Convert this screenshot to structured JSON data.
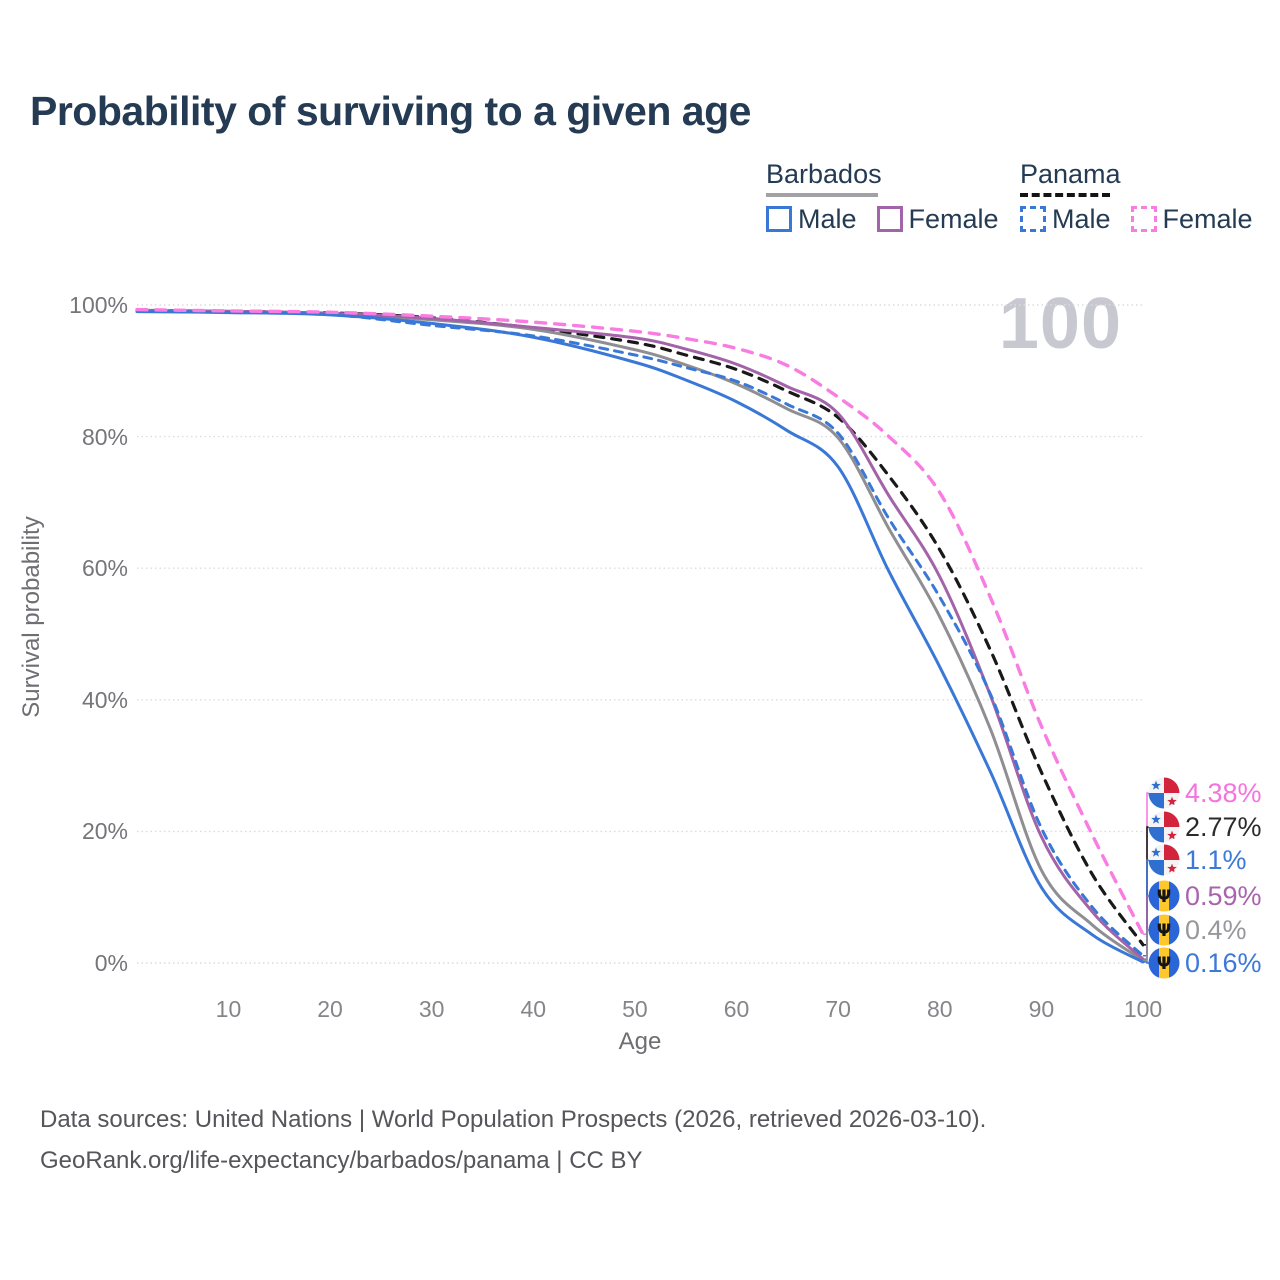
{
  "title": "Probability of surviving to a given age",
  "age_counter": "100",
  "legend": {
    "groups": [
      {
        "name": "Barbados",
        "line_style": "solid",
        "underline_color": "#a2a2a6",
        "items": [
          {
            "label": "Male",
            "color": "#3a78d7",
            "dashed": false
          },
          {
            "label": "Female",
            "color": "#a363a8",
            "dashed": false
          }
        ]
      },
      {
        "name": "Panama",
        "line_style": "dashed",
        "underline_color": "#141414",
        "items": [
          {
            "label": "Male",
            "color": "#3a78d7",
            "dashed": true
          },
          {
            "label": "Female",
            "color": "#f97ce1",
            "dashed": true
          }
        ]
      }
    ]
  },
  "chart_data": {
    "type": "line",
    "title": "Probability of surviving to a given age",
    "xlabel": "Age",
    "ylabel": "Survival probability",
    "xlim": [
      1,
      100
    ],
    "ylim": [
      0,
      100
    ],
    "grid": "horizontal-dotted",
    "legend_position": "top-right",
    "x_ticks": [
      10,
      20,
      30,
      40,
      50,
      60,
      70,
      80,
      90,
      100
    ],
    "y_ticks": [
      {
        "value": 0,
        "label": "0%"
      },
      {
        "value": 20,
        "label": "20%"
      },
      {
        "value": 40,
        "label": "40%"
      },
      {
        "value": 60,
        "label": "60%"
      },
      {
        "value": 80,
        "label": "80%"
      },
      {
        "value": 100,
        "label": "100%"
      }
    ],
    "ages": [
      1,
      10,
      20,
      30,
      40,
      50,
      55,
      60,
      65,
      70,
      75,
      80,
      85,
      90,
      95,
      100
    ],
    "series": [
      {
        "name": "Panama Both sexes",
        "country": "Panama",
        "sex": "Both",
        "color": "#191919",
        "dash": "9 8",
        "width": 3.2,
        "row": 1,
        "values": [
          99.2,
          99.0,
          98.8,
          98.05,
          96.5,
          94.3,
          92.4,
          90.2,
          86.9,
          82.9,
          74.0,
          62.8,
          47.5,
          29.0,
          13.5,
          2.77
        ],
        "end": {
          "label": "2.77%",
          "label_color": "#2b2b2b",
          "flag": "panama",
          "value": 2.77
        }
      },
      {
        "name": "Barbados Both sexes",
        "country": "Barbados",
        "sex": "Both",
        "color": "#8e8e93",
        "dash": null,
        "width": 3,
        "row": 4,
        "values": [
          99.1,
          98.95,
          98.65,
          97.75,
          96.3,
          93.2,
          90.9,
          88.0,
          84.2,
          79.8,
          66.0,
          52.6,
          35.5,
          14.1,
          5.8,
          0.4
        ],
        "end": {
          "label": "0.4%",
          "label_color": "#98989c",
          "flag": "barbados",
          "value": 0.4
        }
      },
      {
        "name": "Barbados Female",
        "country": "Barbados",
        "sex": "Female",
        "color": "#a363a8",
        "dash": null,
        "width": 3,
        "row": 3,
        "values": [
          99.2,
          99.05,
          98.75,
          97.95,
          96.6,
          95.0,
          93.3,
          91.0,
          87.6,
          83.5,
          71.0,
          58.7,
          40.6,
          19.2,
          7.8,
          0.59
        ],
        "end": {
          "label": "0.59%",
          "label_color": "#a864ad",
          "flag": "barbados",
          "value": 0.59
        }
      },
      {
        "name": "Barbados Male",
        "country": "Barbados",
        "sex": "Male",
        "color": "#3a78d7",
        "dash": null,
        "width": 3,
        "row": 5,
        "values": [
          99.0,
          98.85,
          98.5,
          97.2,
          95.1,
          91.3,
          88.6,
          85.3,
          80.9,
          75.4,
          59.5,
          45.0,
          29.0,
          11.5,
          4.3,
          0.16
        ],
        "end": {
          "label": "0.16%",
          "label_color": "#3c79d8",
          "flag": "barbados",
          "value": 0.16
        }
      },
      {
        "name": "Panama Male",
        "country": "Panama",
        "sex": "Male",
        "color": "#3a78d7",
        "dash": "8 7",
        "width": 3,
        "row": 2,
        "values": [
          99.1,
          98.9,
          98.55,
          96.9,
          95.3,
          92.4,
          90.5,
          88.4,
          84.9,
          80.5,
          67.5,
          55.6,
          40.8,
          20.5,
          8.5,
          1.1
        ],
        "end": {
          "label": "1.1%",
          "label_color": "#3c79d8",
          "flag": "panama",
          "value": 1.1
        }
      },
      {
        "name": "Panama Female",
        "country": "Panama",
        "sex": "Female",
        "color": "#f97ce1",
        "dash": "10 9",
        "width": 3.4,
        "row": 0,
        "values": [
          99.3,
          99.1,
          98.9,
          98.3,
          97.4,
          96.0,
          94.9,
          93.4,
          90.8,
          86.0,
          80.0,
          71.5,
          55.5,
          36.0,
          19.5,
          4.38
        ],
        "end": {
          "label": "4.38%",
          "label_color": "#f673df",
          "flag": "panama",
          "value": 4.38
        }
      }
    ]
  },
  "footer": {
    "line1": "Data sources: United Nations | World Population Prospects (2026, retrieved 2026-03-10).",
    "line2": "GeoRank.org/life-expectancy/barbados/panama | CC BY"
  }
}
